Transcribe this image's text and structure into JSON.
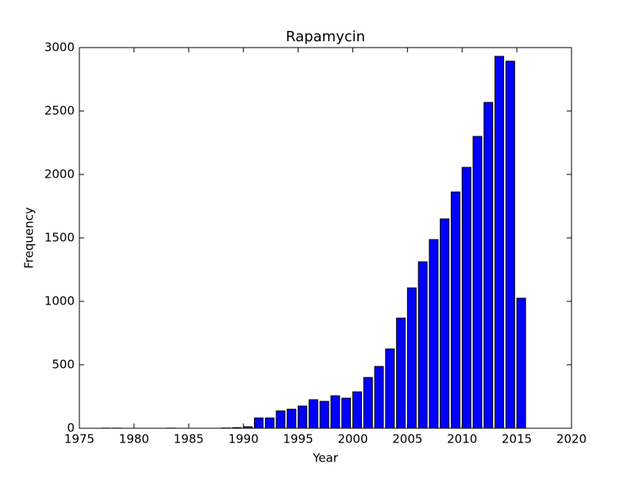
{
  "chart_data": {
    "type": "bar",
    "title": "Rapamycin",
    "xlabel": "Year",
    "ylabel": "Frequency",
    "x": [
      1977,
      1978,
      1983,
      1988,
      1989,
      1990,
      1991,
      1992,
      1993,
      1994,
      1995,
      1996,
      1997,
      1998,
      1999,
      2000,
      2001,
      2002,
      2003,
      2004,
      2005,
      2006,
      2007,
      2008,
      2009,
      2010,
      2011,
      2012,
      2013,
      2014,
      2015
    ],
    "values": [
      1,
      1,
      1,
      2,
      5,
      12,
      81,
      81,
      137,
      150,
      175,
      225,
      212,
      256,
      237,
      287,
      400,
      487,
      625,
      868,
      1106,
      1312,
      1487,
      1650,
      1862,
      2056,
      2300,
      2568,
      2931,
      2893,
      1025
    ],
    "color": "#0000ff",
    "xlim": [
      1975,
      2020
    ],
    "xticks": [
      1975,
      1980,
      1985,
      1990,
      1995,
      2000,
      2005,
      2010,
      2015,
      2020
    ],
    "ylim": [
      0,
      3000
    ],
    "yticks": [
      0,
      500,
      1000,
      1500,
      2000,
      2500,
      3000
    ]
  }
}
